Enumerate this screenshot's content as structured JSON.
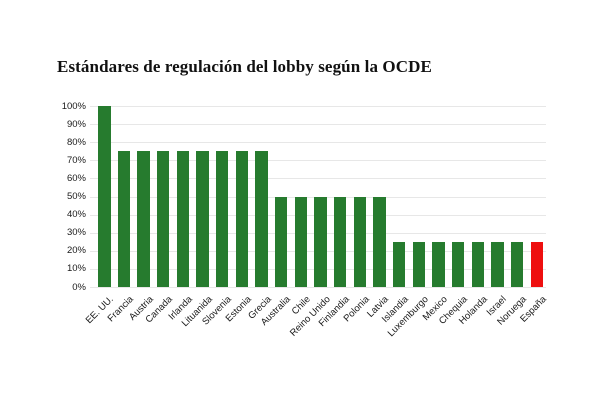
{
  "chart_data": {
    "type": "bar",
    "title": "Estándares de regulación del lobby según la OCDE",
    "categories": [
      "EE. UU.",
      "Francia",
      "Austria",
      "Canada",
      "Irlanda",
      "Lituanida",
      "Slovenia",
      "Estonia",
      "Grecia",
      "Australia",
      "Chile",
      "Reino Unido",
      "Finlandia",
      "Polonia",
      "Latvia",
      "Islandia",
      "Luxemburgo",
      "Mexico",
      "Chequia",
      "Holanda",
      "Israel",
      "Noruega",
      "España"
    ],
    "values": [
      100,
      75,
      75,
      75,
      75,
      75,
      75,
      75,
      75,
      50,
      50,
      50,
      50,
      50,
      50,
      25,
      25,
      25,
      25,
      25,
      25,
      25,
      25
    ],
    "highlight_category": "España",
    "y_ticks": [
      "100%",
      "90%",
      "80%",
      "70%",
      "60%",
      "50%",
      "40%",
      "30%",
      "20%",
      "10%",
      "0%"
    ],
    "ylim": [
      0,
      100
    ],
    "grid": true,
    "legend": null,
    "xlabel": "",
    "ylabel": "",
    "colors": {
      "bar": "#267b2e",
      "highlight_bar": "#ee0f0f",
      "gridline": "#e7e7e7",
      "axis_text": "#1a1a1a",
      "background": "#ffffff"
    }
  }
}
